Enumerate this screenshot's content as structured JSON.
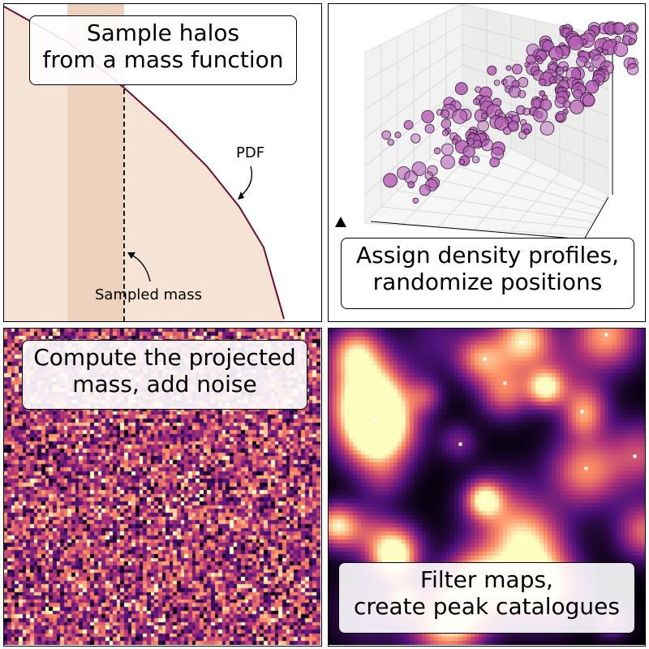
{
  "panels": {
    "sample": {
      "title_line1": "Sample halos",
      "title_line2": "from a mass function",
      "pdf_label": "PDF",
      "sampled_label": "Sampled mass",
      "colors": {
        "curve": "#6b0f2b",
        "fill": "#f5e4d6",
        "band": "#ecd1bc"
      }
    },
    "assign": {
      "title_line1": "Assign density profiles,",
      "title_line2": "randomize positions",
      "marker_color": "#b35db3"
    },
    "noise": {
      "title_line1": "Compute the projected",
      "title_line2": "mass, add noise",
      "colormap": "magma"
    },
    "filter": {
      "title_line1": "Filter maps,",
      "title_line2": "create peak catalogues",
      "colormap": "magma",
      "peak_color": "#ffffff"
    }
  }
}
